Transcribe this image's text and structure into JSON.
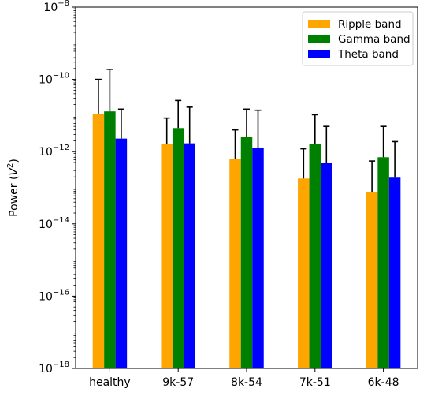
{
  "chart_data": {
    "type": "bar",
    "title": "",
    "xlabel": "",
    "ylabel": "Power (V²)",
    "ylabel_parts": {
      "text": "Power (",
      "var": "V",
      "sup": "2",
      "close": ")"
    },
    "yscale": "log",
    "ylim": [
      1e-18,
      1e-08
    ],
    "y_ticks": [
      {
        "exp": -18,
        "base": "10",
        "sup": "−18"
      },
      {
        "exp": -16,
        "base": "10",
        "sup": "−16"
      },
      {
        "exp": -14,
        "base": "10",
        "sup": "−14"
      },
      {
        "exp": -12,
        "base": "10",
        "sup": "−12"
      },
      {
        "exp": -10,
        "base": "10",
        "sup": "−10"
      },
      {
        "exp": -8,
        "base": "10",
        "sup": "−8"
      }
    ],
    "grid": false,
    "legend_position": "top-right",
    "categories": [
      "healthy",
      "9k-57",
      "8k-54",
      "7k-51",
      "6k-48"
    ],
    "series": [
      {
        "name": "Ripple band",
        "color": "#ffa500",
        "values": [
          1.1e-11,
          1.6e-12,
          6.3e-13,
          1.8e-13,
          7.5e-14
        ],
        "err_upper": [
          1e-10,
          8.5e-12,
          4e-12,
          1.2e-12,
          5.5e-13
        ]
      },
      {
        "name": "Gamma band",
        "color": "#008000",
        "values": [
          1.3e-11,
          4.5e-12,
          2.5e-12,
          1.6e-12,
          7e-13
        ],
        "err_upper": [
          1.9e-10,
          2.6e-11,
          1.5e-11,
          1.05e-11,
          5e-12
        ]
      },
      {
        "name": "Theta band",
        "color": "#0000ff",
        "values": [
          2.3e-12,
          1.7e-12,
          1.3e-12,
          5e-13,
          1.9e-13
        ],
        "err_upper": [
          1.5e-11,
          1.7e-11,
          1.4e-11,
          5e-12,
          1.9e-12
        ]
      }
    ]
  }
}
